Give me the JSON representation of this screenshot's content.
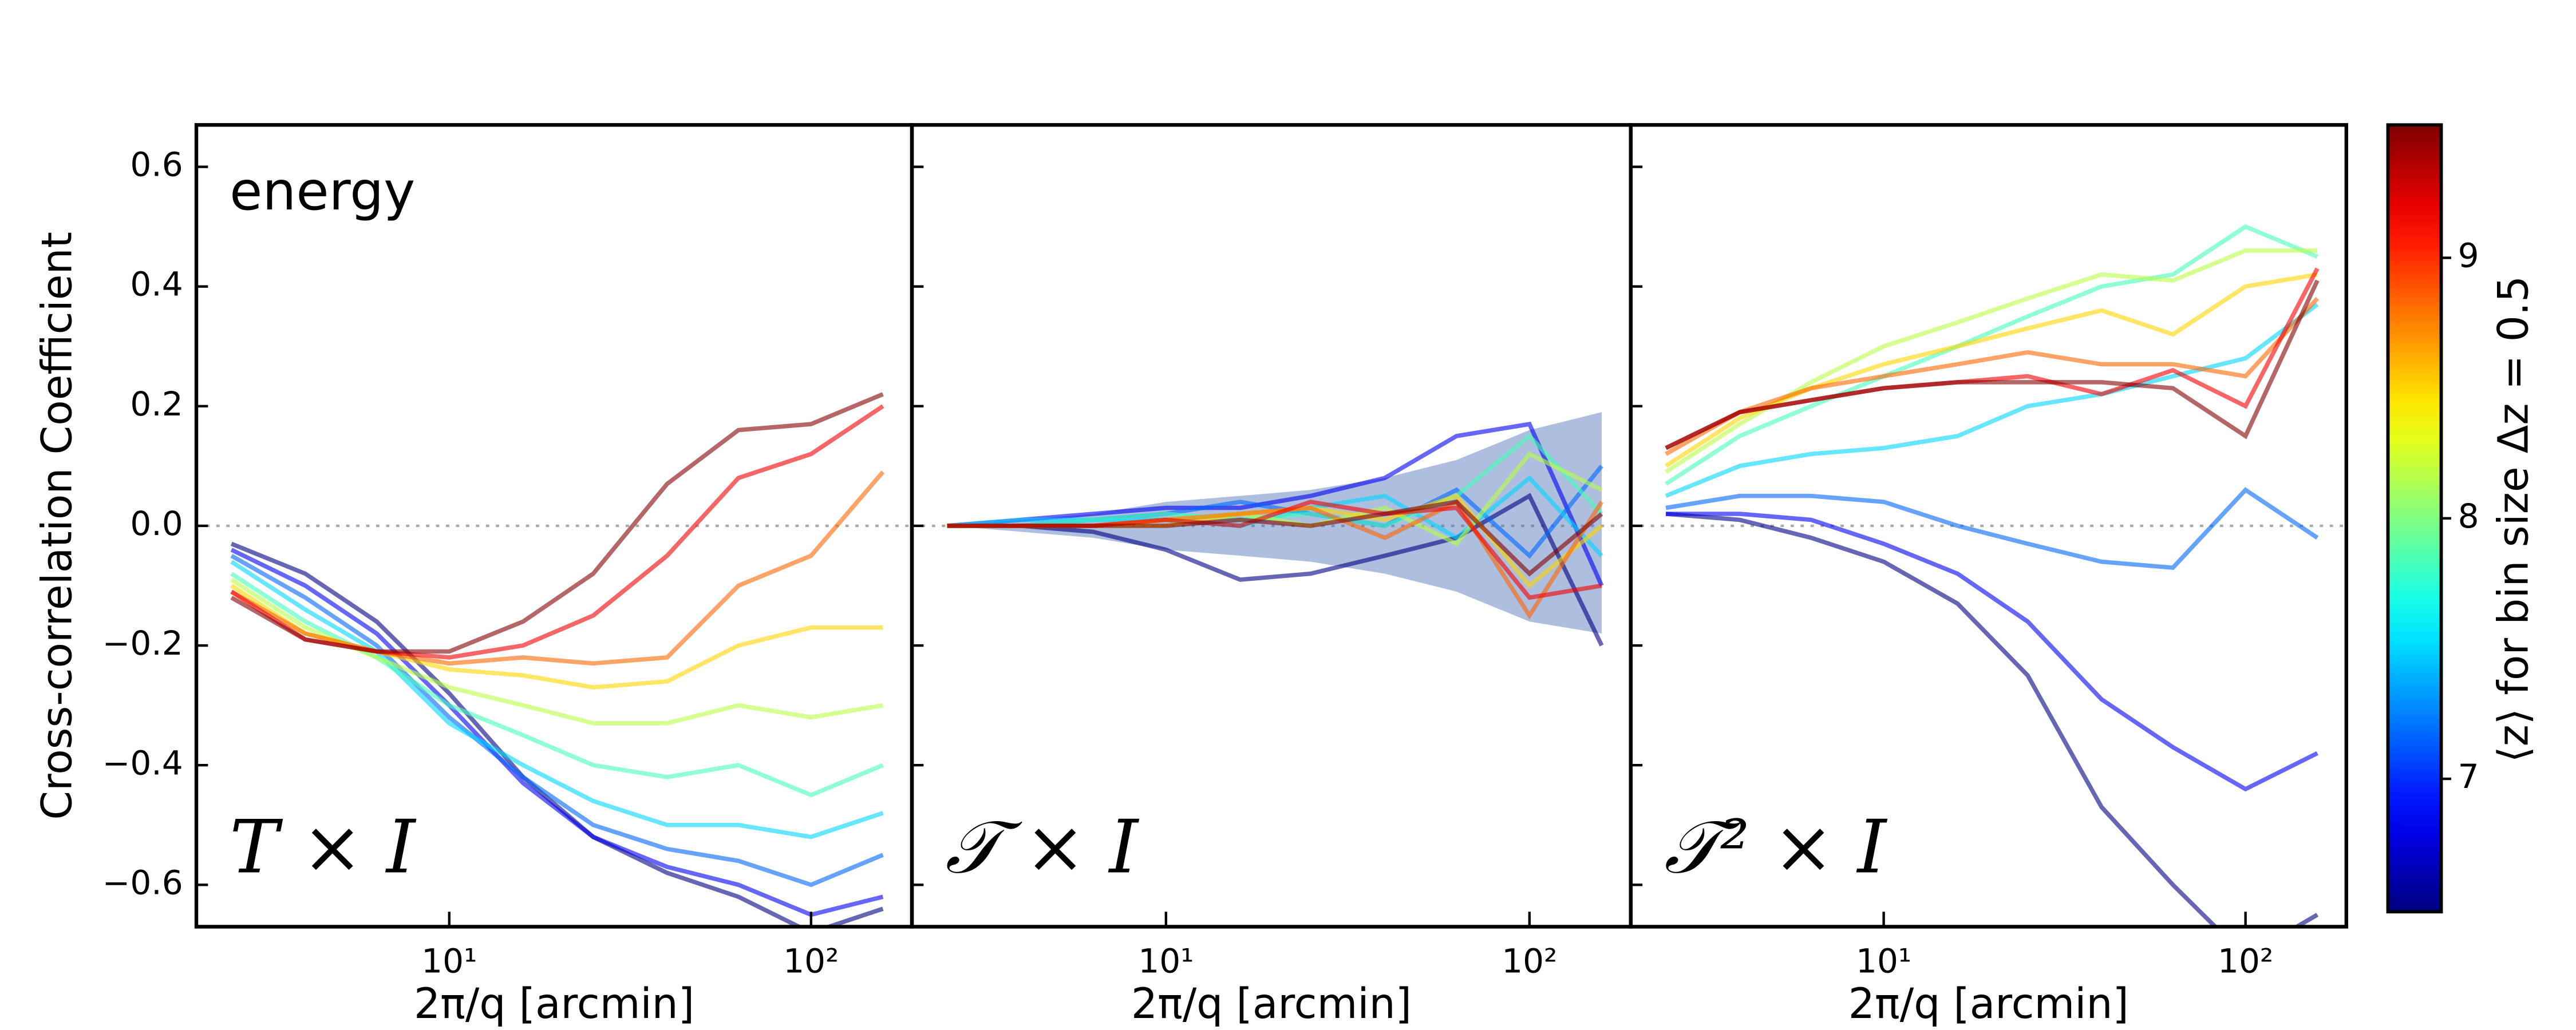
{
  "chart_data": {
    "type": "line",
    "ylabel": "Cross-correlation Coefficient",
    "x": [
      2.5,
      4,
      6.3,
      10,
      16,
      25,
      40,
      63,
      100,
      158
    ],
    "xlim": [
      2.0,
      190
    ],
    "xticks": [
      {
        "value": 10,
        "label": "10¹"
      },
      {
        "value": 100,
        "label": "10²"
      }
    ],
    "log_x": true,
    "ylim": [
      -0.67,
      0.67
    ],
    "yticks": [
      {
        "value": -0.6,
        "label": "−0.6"
      },
      {
        "value": -0.4,
        "label": "−0.4"
      },
      {
        "value": -0.2,
        "label": "−0.2"
      },
      {
        "value": 0,
        "label": "0.0"
      },
      0.2,
      0.4,
      0.6
    ],
    "reference_line": 0,
    "colormap": "jet",
    "colorbar": {
      "label": "⟨z⟩ for bin size Δz = 0.5",
      "lim": [
        6.49,
        9.51
      ],
      "ticks": [
        7,
        8,
        9
      ]
    },
    "panels": [
      {
        "annotation": "energy",
        "label": "T × I",
        "xlabel": "2π/q [arcmin]",
        "series": [
          {
            "z": 6.5,
            "values": [
              -0.03,
              -0.08,
              -0.16,
              -0.28,
              -0.42,
              -0.52,
              -0.58,
              -0.62,
              -0.68,
              -0.64
            ]
          },
          {
            "z": 6.83,
            "values": [
              -0.04,
              -0.1,
              -0.18,
              -0.3,
              -0.43,
              -0.52,
              -0.57,
              -0.6,
              -0.65,
              -0.62
            ]
          },
          {
            "z": 7.17,
            "values": [
              -0.05,
              -0.12,
              -0.2,
              -0.32,
              -0.42,
              -0.5,
              -0.54,
              -0.56,
              -0.6,
              -0.55
            ]
          },
          {
            "z": 7.5,
            "values": [
              -0.06,
              -0.14,
              -0.21,
              -0.33,
              -0.4,
              -0.46,
              -0.5,
              -0.5,
              -0.52,
              -0.48
            ]
          },
          {
            "z": 7.83,
            "values": [
              -0.08,
              -0.16,
              -0.22,
              -0.3,
              -0.35,
              -0.4,
              -0.42,
              -0.4,
              -0.45,
              -0.4
            ]
          },
          {
            "z": 8.17,
            "values": [
              -0.09,
              -0.17,
              -0.22,
              -0.27,
              -0.3,
              -0.33,
              -0.33,
              -0.3,
              -0.32,
              -0.3
            ]
          },
          {
            "z": 8.5,
            "values": [
              -0.1,
              -0.18,
              -0.21,
              -0.24,
              -0.25,
              -0.27,
              -0.26,
              -0.2,
              -0.17,
              -0.17
            ]
          },
          {
            "z": 8.83,
            "values": [
              -0.11,
              -0.18,
              -0.21,
              -0.23,
              -0.22,
              -0.23,
              -0.22,
              -0.1,
              -0.05,
              0.09
            ]
          },
          {
            "z": 9.17,
            "values": [
              -0.11,
              -0.19,
              -0.21,
              -0.22,
              -0.2,
              -0.15,
              -0.05,
              0.08,
              0.12,
              0.2
            ]
          },
          {
            "z": 9.5,
            "values": [
              -0.12,
              -0.19,
              -0.21,
              -0.21,
              -0.16,
              -0.08,
              0.07,
              0.16,
              0.17,
              0.22
            ]
          }
        ]
      },
      {
        "label": "𝒯 × I",
        "xlabel": "2π/q [arcmin]",
        "band": {
          "color": "#4a6fb5",
          "lower": [
            0,
            -0.01,
            -0.02,
            -0.04,
            -0.05,
            -0.06,
            -0.08,
            -0.11,
            -0.16,
            -0.18
          ],
          "upper": [
            0,
            0.01,
            0.02,
            0.04,
            0.05,
            0.06,
            0.08,
            0.11,
            0.16,
            0.19
          ]
        },
        "series": [
          {
            "z": 6.5,
            "values": [
              0,
              0,
              -0.01,
              -0.04,
              -0.09,
              -0.08,
              -0.05,
              -0.02,
              0.05,
              -0.2
            ]
          },
          {
            "z": 6.83,
            "values": [
              0,
              0.01,
              0.02,
              0.03,
              0.03,
              0.05,
              0.08,
              0.15,
              0.17,
              -0.1
            ]
          },
          {
            "z": 7.17,
            "values": [
              0,
              0,
              0.01,
              0.02,
              0.04,
              0.02,
              0.0,
              0.06,
              -0.05,
              0.1
            ]
          },
          {
            "z": 7.5,
            "values": [
              0,
              0.01,
              0.01,
              0.01,
              0.0,
              0.03,
              0.05,
              -0.02,
              0.08,
              -0.05
            ]
          },
          {
            "z": 7.83,
            "values": [
              0,
              0,
              0.01,
              0.02,
              0.01,
              0.02,
              0.0,
              0.05,
              0.15,
              0.02
            ]
          },
          {
            "z": 8.17,
            "values": [
              0,
              0,
              0,
              0.01,
              0.02,
              0.0,
              0.03,
              -0.03,
              0.12,
              0.06
            ]
          },
          {
            "z": 8.5,
            "values": [
              0,
              0,
              0,
              0.0,
              0.02,
              0.03,
              0.01,
              0.05,
              -0.1,
              0.0
            ]
          },
          {
            "z": 8.83,
            "values": [
              0,
              0,
              0,
              0.01,
              0.02,
              0.03,
              -0.02,
              0.04,
              -0.15,
              0.04
            ]
          },
          {
            "z": 9.17,
            "values": [
              0,
              0,
              0.0,
              0.01,
              0.0,
              0.04,
              0.02,
              0.03,
              -0.12,
              -0.1
            ]
          },
          {
            "z": 9.5,
            "values": [
              0,
              0,
              0.0,
              0.0,
              0.01,
              0.0,
              0.02,
              0.04,
              -0.08,
              0.02
            ]
          }
        ]
      },
      {
        "label": "𝒯² × I",
        "xlabel": "2π/q [arcmin]",
        "series": [
          {
            "z": 6.5,
            "values": [
              0.02,
              0.01,
              -0.02,
              -0.06,
              -0.13,
              -0.25,
              -0.47,
              -0.6,
              -0.72,
              -0.65
            ]
          },
          {
            "z": 6.83,
            "values": [
              0.02,
              0.02,
              0.01,
              -0.03,
              -0.08,
              -0.16,
              -0.29,
              -0.37,
              -0.44,
              -0.38
            ]
          },
          {
            "z": 7.17,
            "values": [
              0.03,
              0.05,
              0.05,
              0.04,
              0.0,
              -0.03,
              -0.06,
              -0.07,
              0.06,
              -0.02
            ]
          },
          {
            "z": 7.5,
            "values": [
              0.05,
              0.1,
              0.12,
              0.13,
              0.15,
              0.2,
              0.22,
              0.25,
              0.28,
              0.37
            ]
          },
          {
            "z": 7.83,
            "values": [
              0.07,
              0.15,
              0.2,
              0.25,
              0.3,
              0.35,
              0.4,
              0.42,
              0.5,
              0.45
            ]
          },
          {
            "z": 8.17,
            "values": [
              0.09,
              0.17,
              0.24,
              0.3,
              0.34,
              0.38,
              0.42,
              0.41,
              0.46,
              0.46
            ]
          },
          {
            "z": 8.5,
            "values": [
              0.1,
              0.18,
              0.23,
              0.27,
              0.3,
              0.33,
              0.36,
              0.32,
              0.4,
              0.42
            ]
          },
          {
            "z": 8.83,
            "values": [
              0.12,
              0.19,
              0.23,
              0.25,
              0.27,
              0.29,
              0.27,
              0.27,
              0.25,
              0.38
            ]
          },
          {
            "z": 9.17,
            "values": [
              0.13,
              0.19,
              0.21,
              0.23,
              0.24,
              0.25,
              0.22,
              0.26,
              0.2,
              0.43
            ]
          },
          {
            "z": 9.5,
            "values": [
              0.13,
              0.19,
              0.21,
              0.23,
              0.24,
              0.24,
              0.24,
              0.23,
              0.15,
              0.41
            ]
          }
        ]
      }
    ]
  }
}
